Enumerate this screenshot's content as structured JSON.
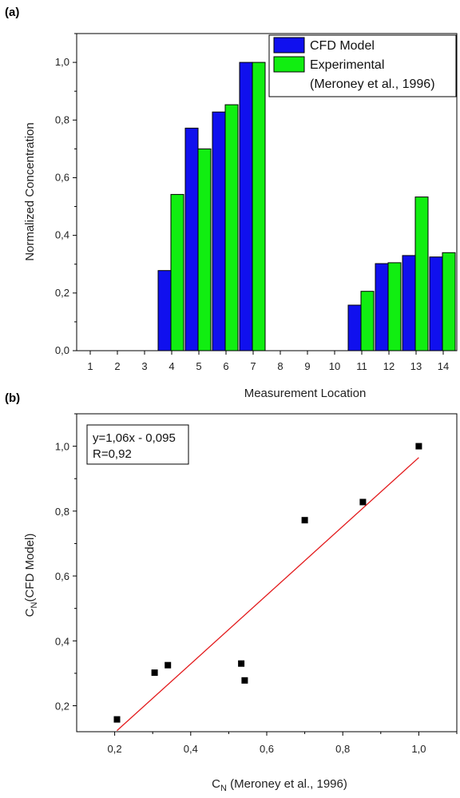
{
  "chart_data": [
    {
      "panel_label": "(a)",
      "type": "bar",
      "title": "",
      "xlabel": "Measurement Location",
      "ylabel": "Normalized Concentration",
      "categories": [
        "1",
        "2",
        "3",
        "4",
        "5",
        "6",
        "7",
        "8",
        "9",
        "10",
        "11",
        "12",
        "13",
        "14"
      ],
      "yticks": [
        "0,0",
        "0,2",
        "0,4",
        "0,6",
        "0,8",
        "1,0"
      ],
      "ylim": [
        0,
        1.1
      ],
      "legend_placement": "top-right",
      "legend_note": "(Meroney et al., 1996)",
      "series": [
        {
          "name": "CFD Model",
          "color": "#1010ee",
          "values": [
            0,
            0,
            0,
            0.278,
            0.772,
            0.828,
            1.0,
            0,
            0,
            0,
            0.158,
            0.302,
            0.33,
            0.325
          ]
        },
        {
          "name": "Experimental",
          "color": "#11ee11",
          "values": [
            0,
            0,
            0,
            0.542,
            0.7,
            0.853,
            1.0,
            0,
            0,
            0,
            0.206,
            0.305,
            0.533,
            0.34
          ]
        }
      ]
    },
    {
      "panel_label": "(b)",
      "type": "scatter",
      "title": "",
      "xlabel_base": "C",
      "xlabel_sub": "N",
      "xlabel_rest": " (Meroney et al., 1996)",
      "ylabel_base": "C",
      "ylabel_sub": "N",
      "ylabel_rest": "(CFD Model)",
      "xticks": [
        "0,2",
        "0,4",
        "0,6",
        "0,8",
        "1,0"
      ],
      "yticks": [
        "0,2",
        "0,4",
        "0,6",
        "0,8",
        "1,0"
      ],
      "xlim": [
        0.1,
        1.1
      ],
      "ylim": [
        0.12,
        1.1
      ],
      "points": [
        {
          "x": 0.206,
          "y": 0.158
        },
        {
          "x": 0.305,
          "y": 0.302
        },
        {
          "x": 0.34,
          "y": 0.325
        },
        {
          "x": 0.533,
          "y": 0.33
        },
        {
          "x": 0.542,
          "y": 0.278
        },
        {
          "x": 0.7,
          "y": 0.772
        },
        {
          "x": 0.853,
          "y": 0.828
        },
        {
          "x": 1.0,
          "y": 1.0
        }
      ],
      "fit": {
        "slope": 1.06,
        "intercept": -0.095,
        "x_range": [
          0.206,
          1.0
        ],
        "color": "#e31a1c"
      },
      "annotation_lines": [
        "y=1,06x - 0,095",
        "R=0,92"
      ],
      "legend_placement": "top-left"
    }
  ]
}
